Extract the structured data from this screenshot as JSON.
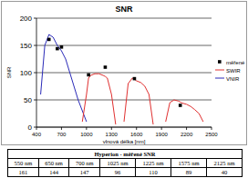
{
  "chart_data": {
    "type": "line",
    "title": "SNR",
    "xlabel": "vlnová délka [nm]",
    "ylabel": "SNR",
    "x": [
      400,
      450,
      500,
      550,
      600,
      650,
      700,
      750,
      800,
      850,
      900,
      950,
      1000,
      1025,
      1050,
      1100,
      1150,
      1200,
      1225,
      1250,
      1300,
      1350,
      1400,
      1450,
      1500,
      1550,
      1575,
      1600,
      1650,
      1700,
      1750,
      1800,
      1850,
      1900,
      1950,
      2000,
      2050,
      2100,
      2125,
      2150,
      2200,
      2250,
      2300,
      2350,
      2400,
      2450
    ],
    "series": [
      {
        "name": "VNIR",
        "type": "line",
        "color": "#2a2ab8",
        "values": [
          null,
          60,
          150,
          170,
          165,
          150,
          140,
          125,
          100,
          75,
          50,
          30,
          10,
          null,
          null,
          null,
          null,
          null,
          null,
          null,
          null,
          null,
          null,
          null,
          null,
          null,
          null,
          null,
          null,
          null,
          null,
          null,
          null,
          null,
          null,
          null,
          null,
          null,
          null,
          null,
          null,
          null,
          null,
          null,
          null,
          null
        ]
      },
      {
        "name": "SWIR",
        "type": "line",
        "color": "#e03030",
        "values": [
          null,
          null,
          null,
          null,
          null,
          null,
          null,
          null,
          null,
          null,
          null,
          10,
          60,
          90,
          95,
          98,
          98,
          95,
          93,
          90,
          60,
          5,
          null,
          10,
          80,
          90,
          88,
          85,
          82,
          75,
          60,
          5,
          null,
          null,
          10,
          45,
          50,
          48,
          46,
          44,
          42,
          38,
          32,
          25,
          10,
          null
        ]
      },
      {
        "name": "měřené",
        "type": "scatter",
        "marker": "square",
        "color": "#000000",
        "values": [
          null,
          null,
          null,
          161,
          null,
          144,
          147,
          null,
          null,
          null,
          null,
          null,
          null,
          96,
          null,
          null,
          null,
          null,
          110,
          null,
          null,
          null,
          null,
          null,
          null,
          null,
          89,
          null,
          null,
          null,
          null,
          null,
          null,
          null,
          null,
          null,
          null,
          null,
          40,
          null,
          null,
          null,
          null,
          null,
          null,
          null
        ]
      }
    ],
    "xlim": [
      400,
      2500
    ],
    "xticks": [
      400,
      700,
      1000,
      1300,
      1600,
      1900,
      2200,
      2500
    ],
    "ylim": [
      0,
      200
    ],
    "yticks": [
      0,
      50,
      100,
      150,
      200
    ],
    "grid": true,
    "legend": "right"
  },
  "table": {
    "title": "Hyperion - měřené SNR",
    "header": [
      "550 nm",
      "650 nm",
      "700 nm",
      "1025 nm",
      "1225 nm",
      "1575 nm",
      "2125 nm"
    ],
    "rows": [
      [
        161,
        144,
        147,
        96,
        110,
        89,
        40
      ]
    ]
  }
}
